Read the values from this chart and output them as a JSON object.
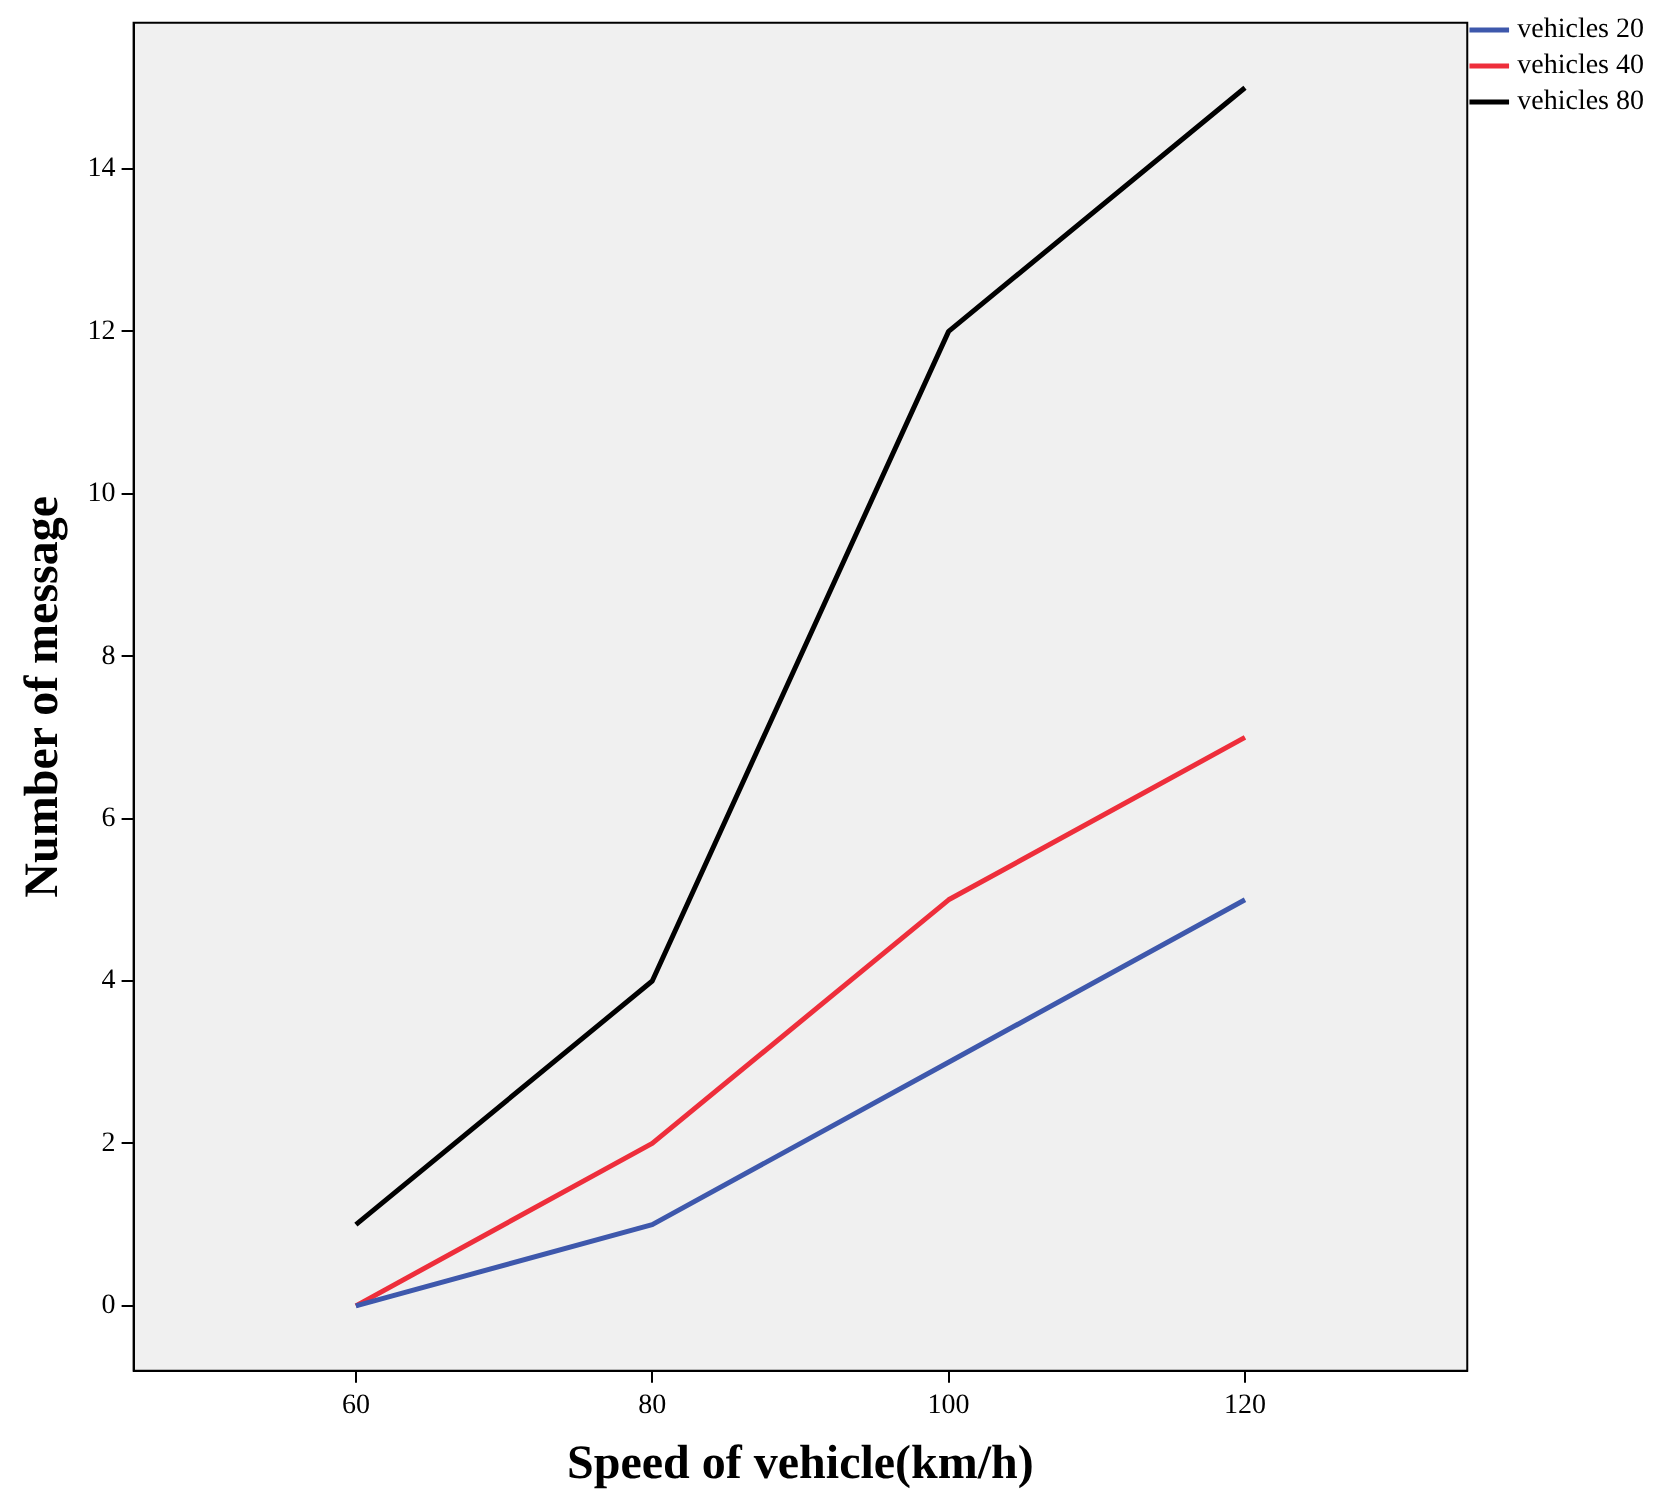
{
  "chart_data": {
    "type": "line",
    "xlabel": "Speed of vehicle(km/h)",
    "ylabel": "Number of message",
    "x": [
      60,
      80,
      100,
      120
    ],
    "series": [
      {
        "name": "vehicles 20",
        "color": "#3e58ac",
        "values": [
          0,
          1,
          3,
          5
        ]
      },
      {
        "name": "vehicles 40",
        "color": "#ee2e3b",
        "values": [
          0,
          2,
          5,
          7
        ]
      },
      {
        "name": "vehicles 80",
        "color": "#000000",
        "values": [
          1,
          4,
          12,
          15
        ]
      }
    ],
    "xlim": [
      45,
      135
    ],
    "xticks": [
      60,
      80,
      100,
      120
    ],
    "ylim": [
      -0.8,
      15.8
    ],
    "yticks": [
      0,
      2,
      4,
      6,
      8,
      10,
      12,
      14
    ],
    "grid": false,
    "legend": "top right",
    "marker": "none",
    "line_style": "solid"
  }
}
